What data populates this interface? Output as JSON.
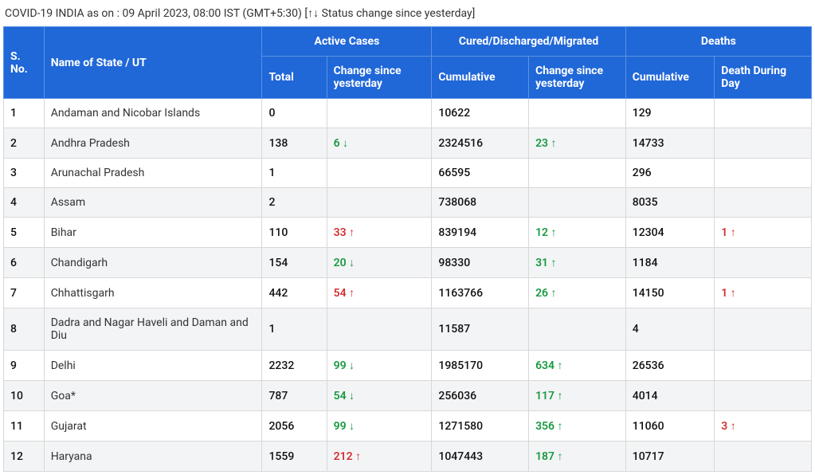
{
  "caption": "COVID-19 INDIA as on : 09 April 2023, 08:00 IST (GMT+5:30) [↑↓ Status change since yesterday]",
  "colors": {
    "header_bg": "#2067d8",
    "header_fg": "#ffffff",
    "row_alt_bg": "#f3f4f6",
    "up": "#d03030",
    "down": "#17993f",
    "border": "#d8d8d8"
  },
  "headers": {
    "sno": "S. No.",
    "name": "Name of State / UT",
    "group_active": "Active Cases",
    "group_cured": "Cured/Discharged/Migrated",
    "group_deaths": "Deaths",
    "active_total": "Total",
    "active_change": "Change since yesterday",
    "cured_cum": "Cumulative",
    "cured_change": "Change since yesterday",
    "deaths_cum": "Cumulative",
    "deaths_day": "Death During Day"
  },
  "rows": [
    {
      "sno": "1",
      "name": "Andaman and Nicobar Islands",
      "at": "0",
      "ac": "",
      "acDir": "",
      "cc": "10622",
      "cch": "",
      "cchDir": "",
      "dc": "129",
      "dd": "",
      "ddDir": ""
    },
    {
      "sno": "2",
      "name": "Andhra Pradesh",
      "at": "138",
      "ac": "6",
      "acDir": "down",
      "cc": "2324516",
      "cch": "23",
      "cchDir": "up",
      "dc": "14733",
      "dd": "",
      "ddDir": ""
    },
    {
      "sno": "3",
      "name": "Arunachal Pradesh",
      "at": "1",
      "ac": "",
      "acDir": "",
      "cc": "66595",
      "cch": "",
      "cchDir": "",
      "dc": "296",
      "dd": "",
      "ddDir": ""
    },
    {
      "sno": "4",
      "name": "Assam",
      "at": "2",
      "ac": "",
      "acDir": "",
      "cc": "738068",
      "cch": "",
      "cchDir": "",
      "dc": "8035",
      "dd": "",
      "ddDir": ""
    },
    {
      "sno": "5",
      "name": "Bihar",
      "at": "110",
      "ac": "33",
      "acDir": "up",
      "cc": "839194",
      "cch": "12",
      "cchDir": "up",
      "dc": "12304",
      "dd": "1",
      "ddDir": "up"
    },
    {
      "sno": "6",
      "name": "Chandigarh",
      "at": "154",
      "ac": "20",
      "acDir": "down",
      "cc": "98330",
      "cch": "31",
      "cchDir": "up",
      "dc": "1184",
      "dd": "",
      "ddDir": ""
    },
    {
      "sno": "7",
      "name": "Chhattisgarh",
      "at": "442",
      "ac": "54",
      "acDir": "up",
      "cc": "1163766",
      "cch": "26",
      "cchDir": "up",
      "dc": "14150",
      "dd": "1",
      "ddDir": "up"
    },
    {
      "sno": "8",
      "name": "Dadra and Nagar Haveli and Daman and Diu",
      "at": "1",
      "ac": "",
      "acDir": "",
      "cc": "11587",
      "cch": "",
      "cchDir": "",
      "dc": "4",
      "dd": "",
      "ddDir": ""
    },
    {
      "sno": "9",
      "name": "Delhi",
      "at": "2232",
      "ac": "99",
      "acDir": "down",
      "cc": "1985170",
      "cch": "634",
      "cchDir": "up",
      "dc": "26536",
      "dd": "",
      "ddDir": ""
    },
    {
      "sno": "10",
      "name": "Goa*",
      "at": "787",
      "ac": "54",
      "acDir": "down",
      "cc": "256036",
      "cch": "117",
      "cchDir": "up",
      "dc": "4014",
      "dd": "",
      "ddDir": ""
    },
    {
      "sno": "11",
      "name": "Gujarat",
      "at": "2056",
      "ac": "99",
      "acDir": "down",
      "cc": "1271580",
      "cch": "356",
      "cchDir": "up",
      "dc": "11060",
      "dd": "3",
      "ddDir": "up"
    },
    {
      "sno": "12",
      "name": "Haryana",
      "at": "1559",
      "ac": "212",
      "acDir": "up",
      "cc": "1047443",
      "cch": "187",
      "cchDir": "up",
      "dc": "10717",
      "dd": "",
      "ddDir": ""
    }
  ]
}
